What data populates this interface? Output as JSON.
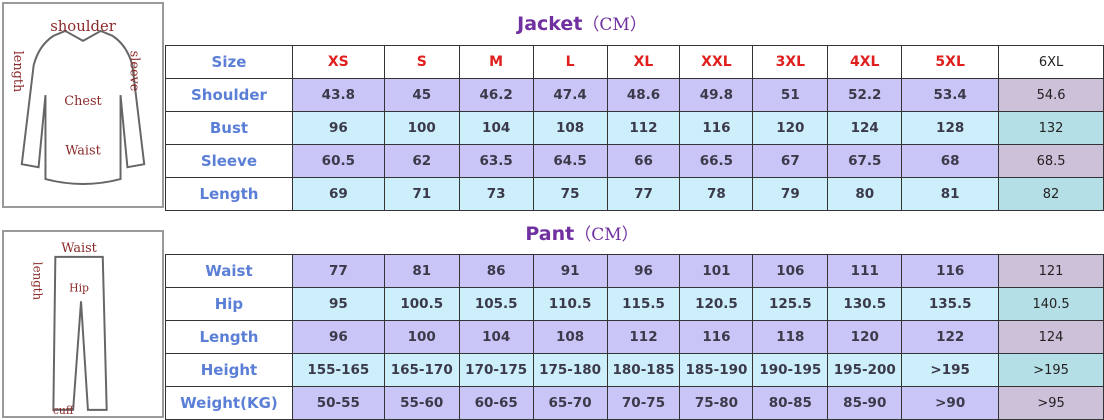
{
  "jacket": {
    "title": "Jacket",
    "unit": "（CM）",
    "sizes": [
      "Size",
      "XS",
      "S",
      "M",
      "L",
      "XL",
      "XXL",
      "3XL",
      "4XL",
      "5XL",
      "6XL"
    ],
    "rows": [
      {
        "label": "Shoulder",
        "values": [
          "43.8",
          "45",
          "46.2",
          "47.4",
          "48.6",
          "49.8",
          "51",
          "52.2",
          "53.4",
          "54.6"
        ]
      },
      {
        "label": "Bust",
        "values": [
          "96",
          "100",
          "104",
          "108",
          "112",
          "116",
          "120",
          "124",
          "128",
          "132"
        ]
      },
      {
        "label": "Sleeve",
        "values": [
          "60.5",
          "62",
          "63.5",
          "64.5",
          "66",
          "66.5",
          "67",
          "67.5",
          "68",
          "68.5"
        ]
      },
      {
        "label": "Length",
        "values": [
          "69",
          "71",
          "73",
          "75",
          "77",
          "78",
          "79",
          "80",
          "81",
          "82"
        ]
      }
    ],
    "diagram_labels": [
      "shoulder",
      "length",
      "sleeve",
      "Chest",
      "Waist"
    ]
  },
  "pant": {
    "title": "Pant",
    "unit": "（CM）",
    "rows": [
      {
        "label": "Waist",
        "values": [
          "77",
          "81",
          "86",
          "91",
          "96",
          "101",
          "106",
          "111",
          "116",
          "121"
        ]
      },
      {
        "label": "Hip",
        "values": [
          "95",
          "100.5",
          "105.5",
          "110.5",
          "115.5",
          "120.5",
          "125.5",
          "130.5",
          "135.5",
          "140.5"
        ]
      },
      {
        "label": "Length",
        "values": [
          "96",
          "100",
          "104",
          "108",
          "112",
          "116",
          "118",
          "120",
          "122",
          "124"
        ]
      },
      {
        "label": "Height",
        "values": [
          "155-165",
          "165-170",
          "170-175",
          "175-180",
          "180-185",
          "185-190",
          "190-195",
          "195-200",
          ">195",
          ">195"
        ]
      },
      {
        "label": "Weight(KG)",
        "values": [
          "50-55",
          "55-60",
          "60-65",
          "65-70",
          "70-75",
          "75-80",
          "80-85",
          "85-90",
          ">90",
          ">95"
        ]
      }
    ],
    "diagram_labels": [
      "Waist",
      "length",
      "Hip",
      "cuff"
    ]
  },
  "colors": {
    "title": "#7030a0",
    "size_header": "#e0201f",
    "label": "#5b7fd6",
    "row_purple": "#c9c6f7",
    "row_blue": "#cdeefb"
  }
}
